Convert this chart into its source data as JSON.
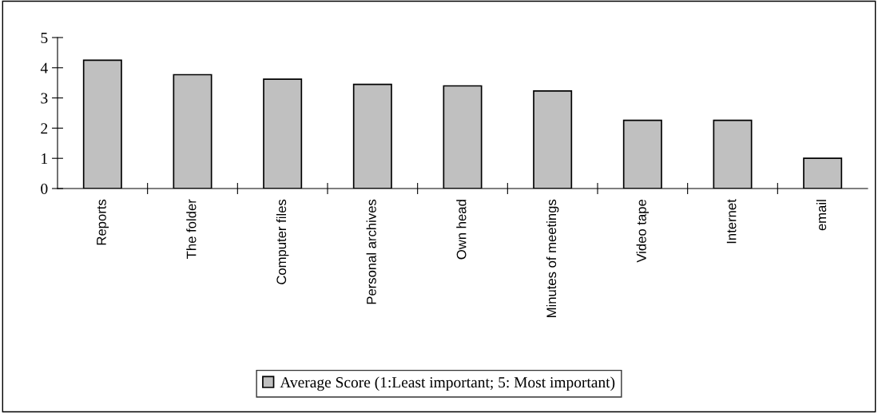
{
  "chart_data": {
    "type": "bar",
    "categories": [
      "Reports",
      "The folder",
      "Computer files",
      "Personal archives",
      "Own head",
      "Minutes of meetings",
      "Video tape",
      "Internet",
      "email"
    ],
    "series": [
      {
        "name": "Average Score (1:Least important; 5: Most important)",
        "color": "#c0c0c0",
        "values": [
          4.25,
          3.77,
          3.62,
          3.45,
          3.4,
          3.23,
          2.26,
          2.26,
          1.0
        ]
      }
    ],
    "ylim": [
      0,
      5
    ],
    "yticks": [
      0,
      1,
      2,
      3,
      4,
      5
    ],
    "grid": false,
    "legend": "bottom"
  }
}
